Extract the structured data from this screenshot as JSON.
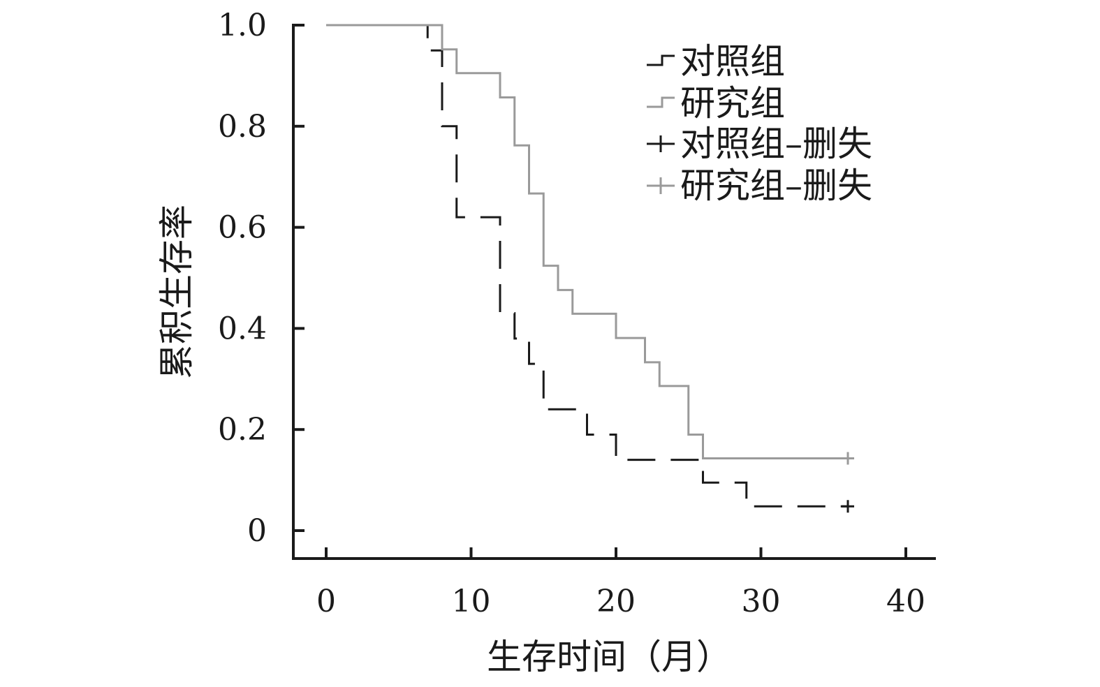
{
  "chart_data": {
    "type": "line",
    "subtype": "kaplan-meier step",
    "xlabel": "生存时间（月）",
    "ylabel": "累积生存率",
    "xlim": [
      -2,
      42
    ],
    "ylim": [
      -0.055,
      1.0
    ],
    "xticks": [
      0,
      10,
      20,
      30,
      40
    ],
    "xtick_labels": [
      "0",
      "10",
      "20",
      "30",
      "40"
    ],
    "yticks": [
      0,
      0.2,
      0.4,
      0.6,
      0.8,
      1.0
    ],
    "ytick_labels": [
      "0",
      "0.2",
      "0.4",
      "0.6",
      "0.8",
      "1.0"
    ],
    "legend_position": "top-right",
    "series": [
      {
        "name": "对照组",
        "color": "#1a1a1a",
        "line_style": "dashed",
        "steps": [
          [
            0,
            1.0
          ],
          [
            7,
            0.95
          ],
          [
            8,
            0.8
          ],
          [
            9,
            0.62
          ],
          [
            12,
            0.43
          ],
          [
            13,
            0.38
          ],
          [
            14,
            0.33
          ],
          [
            15,
            0.24
          ],
          [
            18,
            0.19
          ],
          [
            20,
            0.14
          ],
          [
            26,
            0.095
          ],
          [
            29,
            0.048
          ],
          [
            36,
            0.048
          ]
        ],
        "censored": [
          [
            36,
            0.048
          ]
        ]
      },
      {
        "name": "研究组",
        "color": "#9a9a9a",
        "line_style": "solid",
        "steps": [
          [
            0,
            1.0
          ],
          [
            8,
            0.952
          ],
          [
            9,
            0.905
          ],
          [
            12,
            0.857
          ],
          [
            13,
            0.762
          ],
          [
            14,
            0.667
          ],
          [
            15,
            0.524
          ],
          [
            16,
            0.476
          ],
          [
            17,
            0.429
          ],
          [
            20,
            0.381
          ],
          [
            22,
            0.333
          ],
          [
            23,
            0.286
          ],
          [
            25,
            0.19
          ],
          [
            26,
            0.143
          ],
          [
            36,
            0.143
          ]
        ],
        "censored": [
          [
            36,
            0.143
          ]
        ]
      }
    ],
    "legend_entries": [
      {
        "label": "对照组",
        "color": "#1a1a1a",
        "marker": "step"
      },
      {
        "label": "研究组",
        "color": "#9a9a9a",
        "marker": "step"
      },
      {
        "label": "对照组–删失",
        "color": "#1a1a1a",
        "marker": "plus"
      },
      {
        "label": "研究组–删失",
        "color": "#9a9a9a",
        "marker": "plus"
      }
    ]
  }
}
